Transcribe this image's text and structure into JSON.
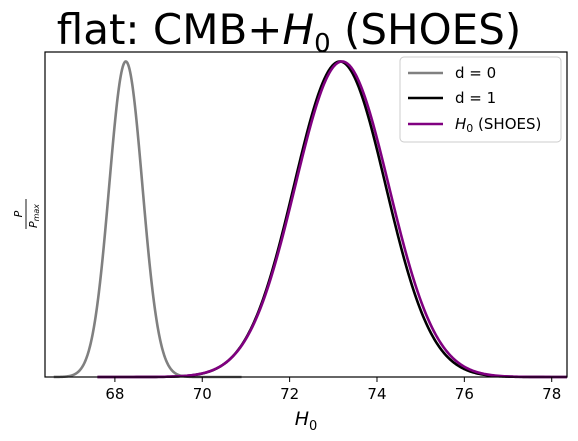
{
  "chart_data": {
    "type": "line",
    "title": {
      "prefix": "flat: CMB+",
      "italic": "H",
      "sub": "0",
      "suffix": " (SHOES)"
    },
    "xlabel": {
      "italic": "H",
      "sub": "0"
    },
    "ylabel": {
      "num": "P",
      "den_main": "P",
      "den_sub": "max"
    },
    "xlim": [
      66.4,
      78.35
    ],
    "ylim": [
      0,
      1.03
    ],
    "xticks": [
      68,
      70,
      72,
      74,
      76,
      78
    ],
    "yticks": [],
    "grid": false,
    "legend_position": "top-right",
    "series": [
      {
        "name": "d = 0",
        "color": "#808080",
        "kind": "gaussian",
        "mean": 68.25,
        "sigma": 0.38,
        "x": [
          66.6,
          68.25,
          70.9
        ],
        "y": [
          0.0,
          1.0,
          0.0
        ]
      },
      {
        "name": "d = 1",
        "color": "#000000",
        "kind": "gaussian",
        "mean": 73.15,
        "sigma": 1.05,
        "x": [
          67.6,
          73.15,
          78.35
        ],
        "y": [
          0.0,
          1.0,
          0.0
        ]
      },
      {
        "name": "H0 (SHOES)",
        "legend": {
          "italic": "H",
          "sub": "0",
          "suffix": " (SHOES)"
        },
        "color": "#800080",
        "kind": "gaussian",
        "mean": 73.2,
        "sigma": 1.07,
        "x": [
          67.6,
          73.2,
          78.35
        ],
        "y": [
          0.0,
          1.0,
          0.0
        ]
      }
    ]
  }
}
